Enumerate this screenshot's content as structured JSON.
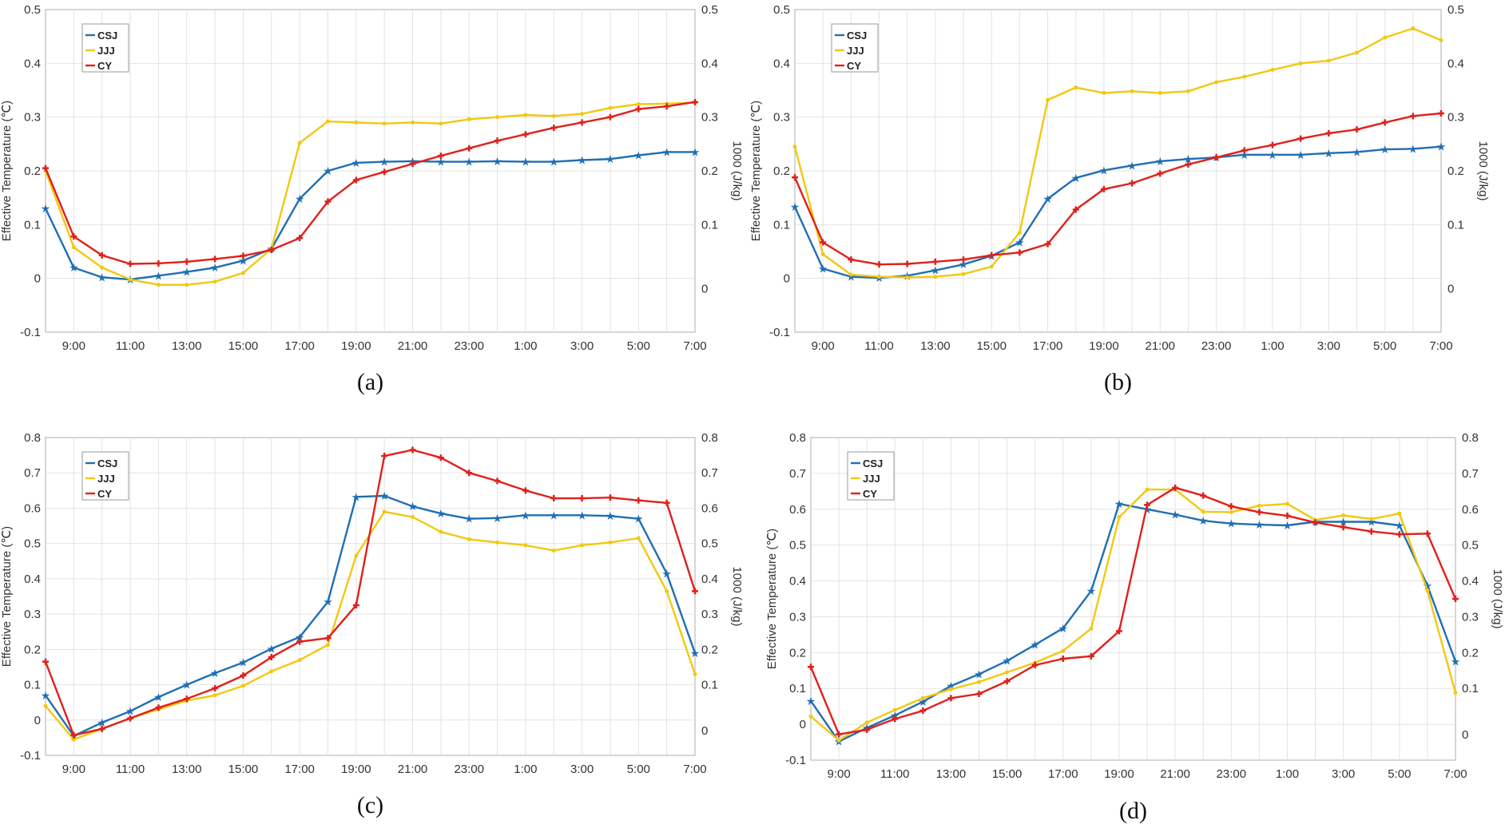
{
  "colors": {
    "CSJ": "#1f6fb4",
    "JJJ": "#f2c811",
    "CY": "#e0201b",
    "grid": "#e3e3e3",
    "axis": "#bbbbbb"
  },
  "chart_data": [
    {
      "type": "line",
      "panel_label": "(a)",
      "ylabel": "Effective Temperature (℃)",
      "ylabel_right": "1000 (J/kg)",
      "ylim": [
        -0.1,
        0.5
      ],
      "yticks": [
        -0.1,
        0,
        0.1,
        0.2,
        0.3,
        0.4,
        0.5
      ],
      "yticks_right": [
        0,
        0.1,
        0.2,
        0.3,
        0.4,
        0.5
      ],
      "xticks": [
        "9:00",
        "11:00",
        "13:00",
        "15:00",
        "17:00",
        "19:00",
        "21:00",
        "23:00",
        "1:00",
        "3:00",
        "5:00",
        "7:00"
      ],
      "grid": true,
      "legend": "top-left",
      "series": [
        {
          "name": "CSJ",
          "values": [
            0.13,
            0.02,
            0.002,
            -0.002,
            0.005,
            0.012,
            0.02,
            0.033,
            0.055,
            0.148,
            0.2,
            0.215,
            0.217,
            0.218,
            0.217,
            0.217,
            0.218,
            0.217,
            0.217,
            0.22,
            0.222,
            0.229,
            0.235,
            0.235
          ]
        },
        {
          "name": "JJJ",
          "values": [
            0.2,
            0.058,
            0.02,
            -0.002,
            -0.012,
            -0.012,
            -0.006,
            0.01,
            0.055,
            0.252,
            0.292,
            0.29,
            0.288,
            0.29,
            0.288,
            0.296,
            0.3,
            0.304,
            0.302,
            0.306,
            0.317,
            0.324,
            0.325,
            0.327
          ]
        },
        {
          "name": "CY",
          "values": [
            0.205,
            0.078,
            0.043,
            0.027,
            0.028,
            0.031,
            0.036,
            0.042,
            0.053,
            0.075,
            0.143,
            0.183,
            0.198,
            0.213,
            0.228,
            0.242,
            0.256,
            0.268,
            0.28,
            0.29,
            0.3,
            0.315,
            0.32,
            0.328
          ]
        }
      ]
    },
    {
      "type": "line",
      "panel_label": "(b)",
      "ylabel": "Effective Temperature (℃)",
      "ylabel_right": "1000 (J/kg)",
      "ylim": [
        -0.1,
        0.5
      ],
      "yticks": [
        -0.1,
        0,
        0.1,
        0.2,
        0.3,
        0.4,
        0.5
      ],
      "yticks_right": [
        0,
        0.1,
        0.2,
        0.3,
        0.4,
        0.5
      ],
      "xticks": [
        "9:00",
        "11:00",
        "13:00",
        "15:00",
        "17:00",
        "19:00",
        "21:00",
        "23:00",
        "1:00",
        "3:00",
        "5:00",
        "7:00"
      ],
      "grid": true,
      "legend": "top-left",
      "series": [
        {
          "name": "CSJ",
          "values": [
            0.133,
            0.018,
            0.003,
            0.001,
            0.005,
            0.015,
            0.026,
            0.042,
            0.067,
            0.148,
            0.187,
            0.201,
            0.21,
            0.218,
            0.222,
            0.225,
            0.23,
            0.23,
            0.23,
            0.233,
            0.235,
            0.24,
            0.241,
            0.245
          ]
        },
        {
          "name": "JJJ",
          "values": [
            0.245,
            0.045,
            0.007,
            0.003,
            0.002,
            0.003,
            0.008,
            0.022,
            0.085,
            0.332,
            0.355,
            0.345,
            0.348,
            0.345,
            0.348,
            0.365,
            0.375,
            0.388,
            0.4,
            0.405,
            0.42,
            0.448,
            0.465,
            0.443
          ]
        },
        {
          "name": "CY",
          "values": [
            0.188,
            0.067,
            0.035,
            0.026,
            0.027,
            0.031,
            0.035,
            0.043,
            0.048,
            0.064,
            0.128,
            0.166,
            0.177,
            0.195,
            0.212,
            0.225,
            0.238,
            0.248,
            0.26,
            0.27,
            0.277,
            0.29,
            0.302,
            0.307
          ]
        }
      ]
    },
    {
      "type": "line",
      "panel_label": "(c)",
      "ylabel": "Effective Temperature (℃)",
      "ylabel_right": "1000 (J/kg)",
      "ylim": [
        -0.1,
        0.8
      ],
      "yticks": [
        -0.1,
        0,
        0.1,
        0.2,
        0.3,
        0.4,
        0.5,
        0.6,
        0.7,
        0.8
      ],
      "yticks_right": [
        0,
        0.1,
        0.2,
        0.3,
        0.4,
        0.5,
        0.6,
        0.7,
        0.8
      ],
      "xticks": [
        "9:00",
        "11:00",
        "13:00",
        "15:00",
        "17:00",
        "19:00",
        "21:00",
        "23:00",
        "1:00",
        "3:00",
        "5:00",
        "7:00"
      ],
      "grid": true,
      "legend": "top-left",
      "series": [
        {
          "name": "CSJ",
          "values": [
            0.07,
            -0.045,
            -0.007,
            0.025,
            0.065,
            0.1,
            0.133,
            0.163,
            0.202,
            0.235,
            0.335,
            0.632,
            0.635,
            0.605,
            0.585,
            0.57,
            0.572,
            0.58,
            0.58,
            0.58,
            0.578,
            0.57,
            0.415,
            0.19
          ]
        },
        {
          "name": "JJJ",
          "values": [
            0.04,
            -0.055,
            -0.025,
            0.005,
            0.03,
            0.055,
            0.07,
            0.097,
            0.138,
            0.17,
            0.213,
            0.465,
            0.59,
            0.575,
            0.533,
            0.512,
            0.503,
            0.495,
            0.48,
            0.495,
            0.503,
            0.515,
            0.365,
            0.13
          ]
        },
        {
          "name": "CY",
          "values": [
            0.165,
            -0.043,
            -0.025,
            0.005,
            0.035,
            0.06,
            0.09,
            0.126,
            0.178,
            0.222,
            0.232,
            0.325,
            0.748,
            0.765,
            0.743,
            0.7,
            0.677,
            0.65,
            0.628,
            0.628,
            0.63,
            0.622,
            0.615,
            0.365
          ]
        }
      ]
    },
    {
      "type": "line",
      "panel_label": "(d)",
      "ylabel": "Effective Temperature (℃)",
      "ylabel_right": "1000 (J/kg)",
      "ylim": [
        -0.1,
        0.8
      ],
      "yticks": [
        -0.1,
        0,
        0.1,
        0.2,
        0.3,
        0.4,
        0.5,
        0.6,
        0.7,
        0.8
      ],
      "yticks_right": [
        0,
        0.1,
        0.2,
        0.3,
        0.4,
        0.5,
        0.6,
        0.7,
        0.8
      ],
      "xticks": [
        "9:00",
        "11:00",
        "13:00",
        "15:00",
        "17:00",
        "19:00",
        "21:00",
        "23:00",
        "1:00",
        "3:00",
        "5:00",
        "7:00"
      ],
      "grid": true,
      "legend": "top-left",
      "series": [
        {
          "name": "CSJ",
          "values": [
            0.065,
            -0.048,
            -0.01,
            0.025,
            0.063,
            0.107,
            0.14,
            0.177,
            0.222,
            0.268,
            0.372,
            0.615,
            0.6,
            0.585,
            0.568,
            0.56,
            0.557,
            0.555,
            0.565,
            0.565,
            0.565,
            0.555,
            0.387,
            0.175
          ]
        },
        {
          "name": "JJJ",
          "values": [
            0.022,
            -0.045,
            0.005,
            0.04,
            0.073,
            0.098,
            0.118,
            0.145,
            0.172,
            0.205,
            0.267,
            0.578,
            0.655,
            0.655,
            0.593,
            0.592,
            0.61,
            0.615,
            0.57,
            0.583,
            0.573,
            0.588,
            0.373,
            0.088
          ]
        },
        {
          "name": "CY",
          "values": [
            0.16,
            -0.028,
            -0.015,
            0.015,
            0.038,
            0.073,
            0.085,
            0.12,
            0.165,
            0.183,
            0.19,
            0.26,
            0.612,
            0.66,
            0.638,
            0.608,
            0.592,
            0.582,
            0.563,
            0.55,
            0.538,
            0.53,
            0.532,
            0.35
          ]
        }
      ]
    }
  ]
}
